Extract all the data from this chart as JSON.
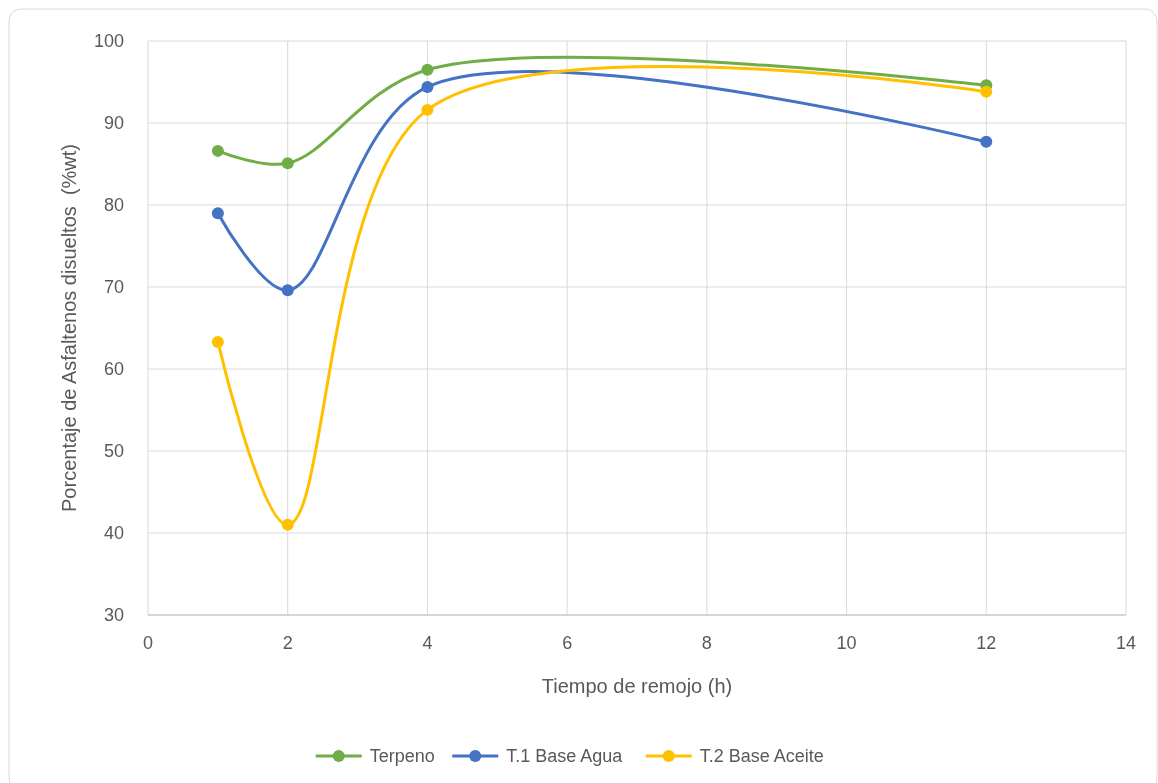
{
  "chart_data": {
    "type": "line",
    "xlabel": "Tiempo de remojo (h)",
    "ylabel": "Porcentaje de Asfaltenos disueltos  (%wt)",
    "x": [
      1,
      2,
      4,
      12
    ],
    "series": [
      {
        "name": "Terpeno",
        "color": "#70ad47",
        "values": [
          86.6,
          85.1,
          96.5,
          94.6
        ]
      },
      {
        "name": "T.1 Base Agua",
        "color": "#4472c4",
        "values": [
          79.0,
          69.6,
          94.4,
          87.7
        ]
      },
      {
        "name": "T.2 Base Aceite",
        "color": "#ffc000",
        "values": [
          63.3,
          41.0,
          91.6,
          93.8
        ]
      }
    ],
    "xlim": [
      0,
      14
    ],
    "xticks": [
      0,
      2,
      4,
      6,
      8,
      10,
      12,
      14
    ],
    "ylim": [
      30,
      100
    ],
    "yticks": [
      30,
      40,
      50,
      60,
      70,
      80,
      90,
      100
    ],
    "grid": true,
    "legend": "bottom",
    "marker": "circle",
    "line_style": "solid"
  }
}
